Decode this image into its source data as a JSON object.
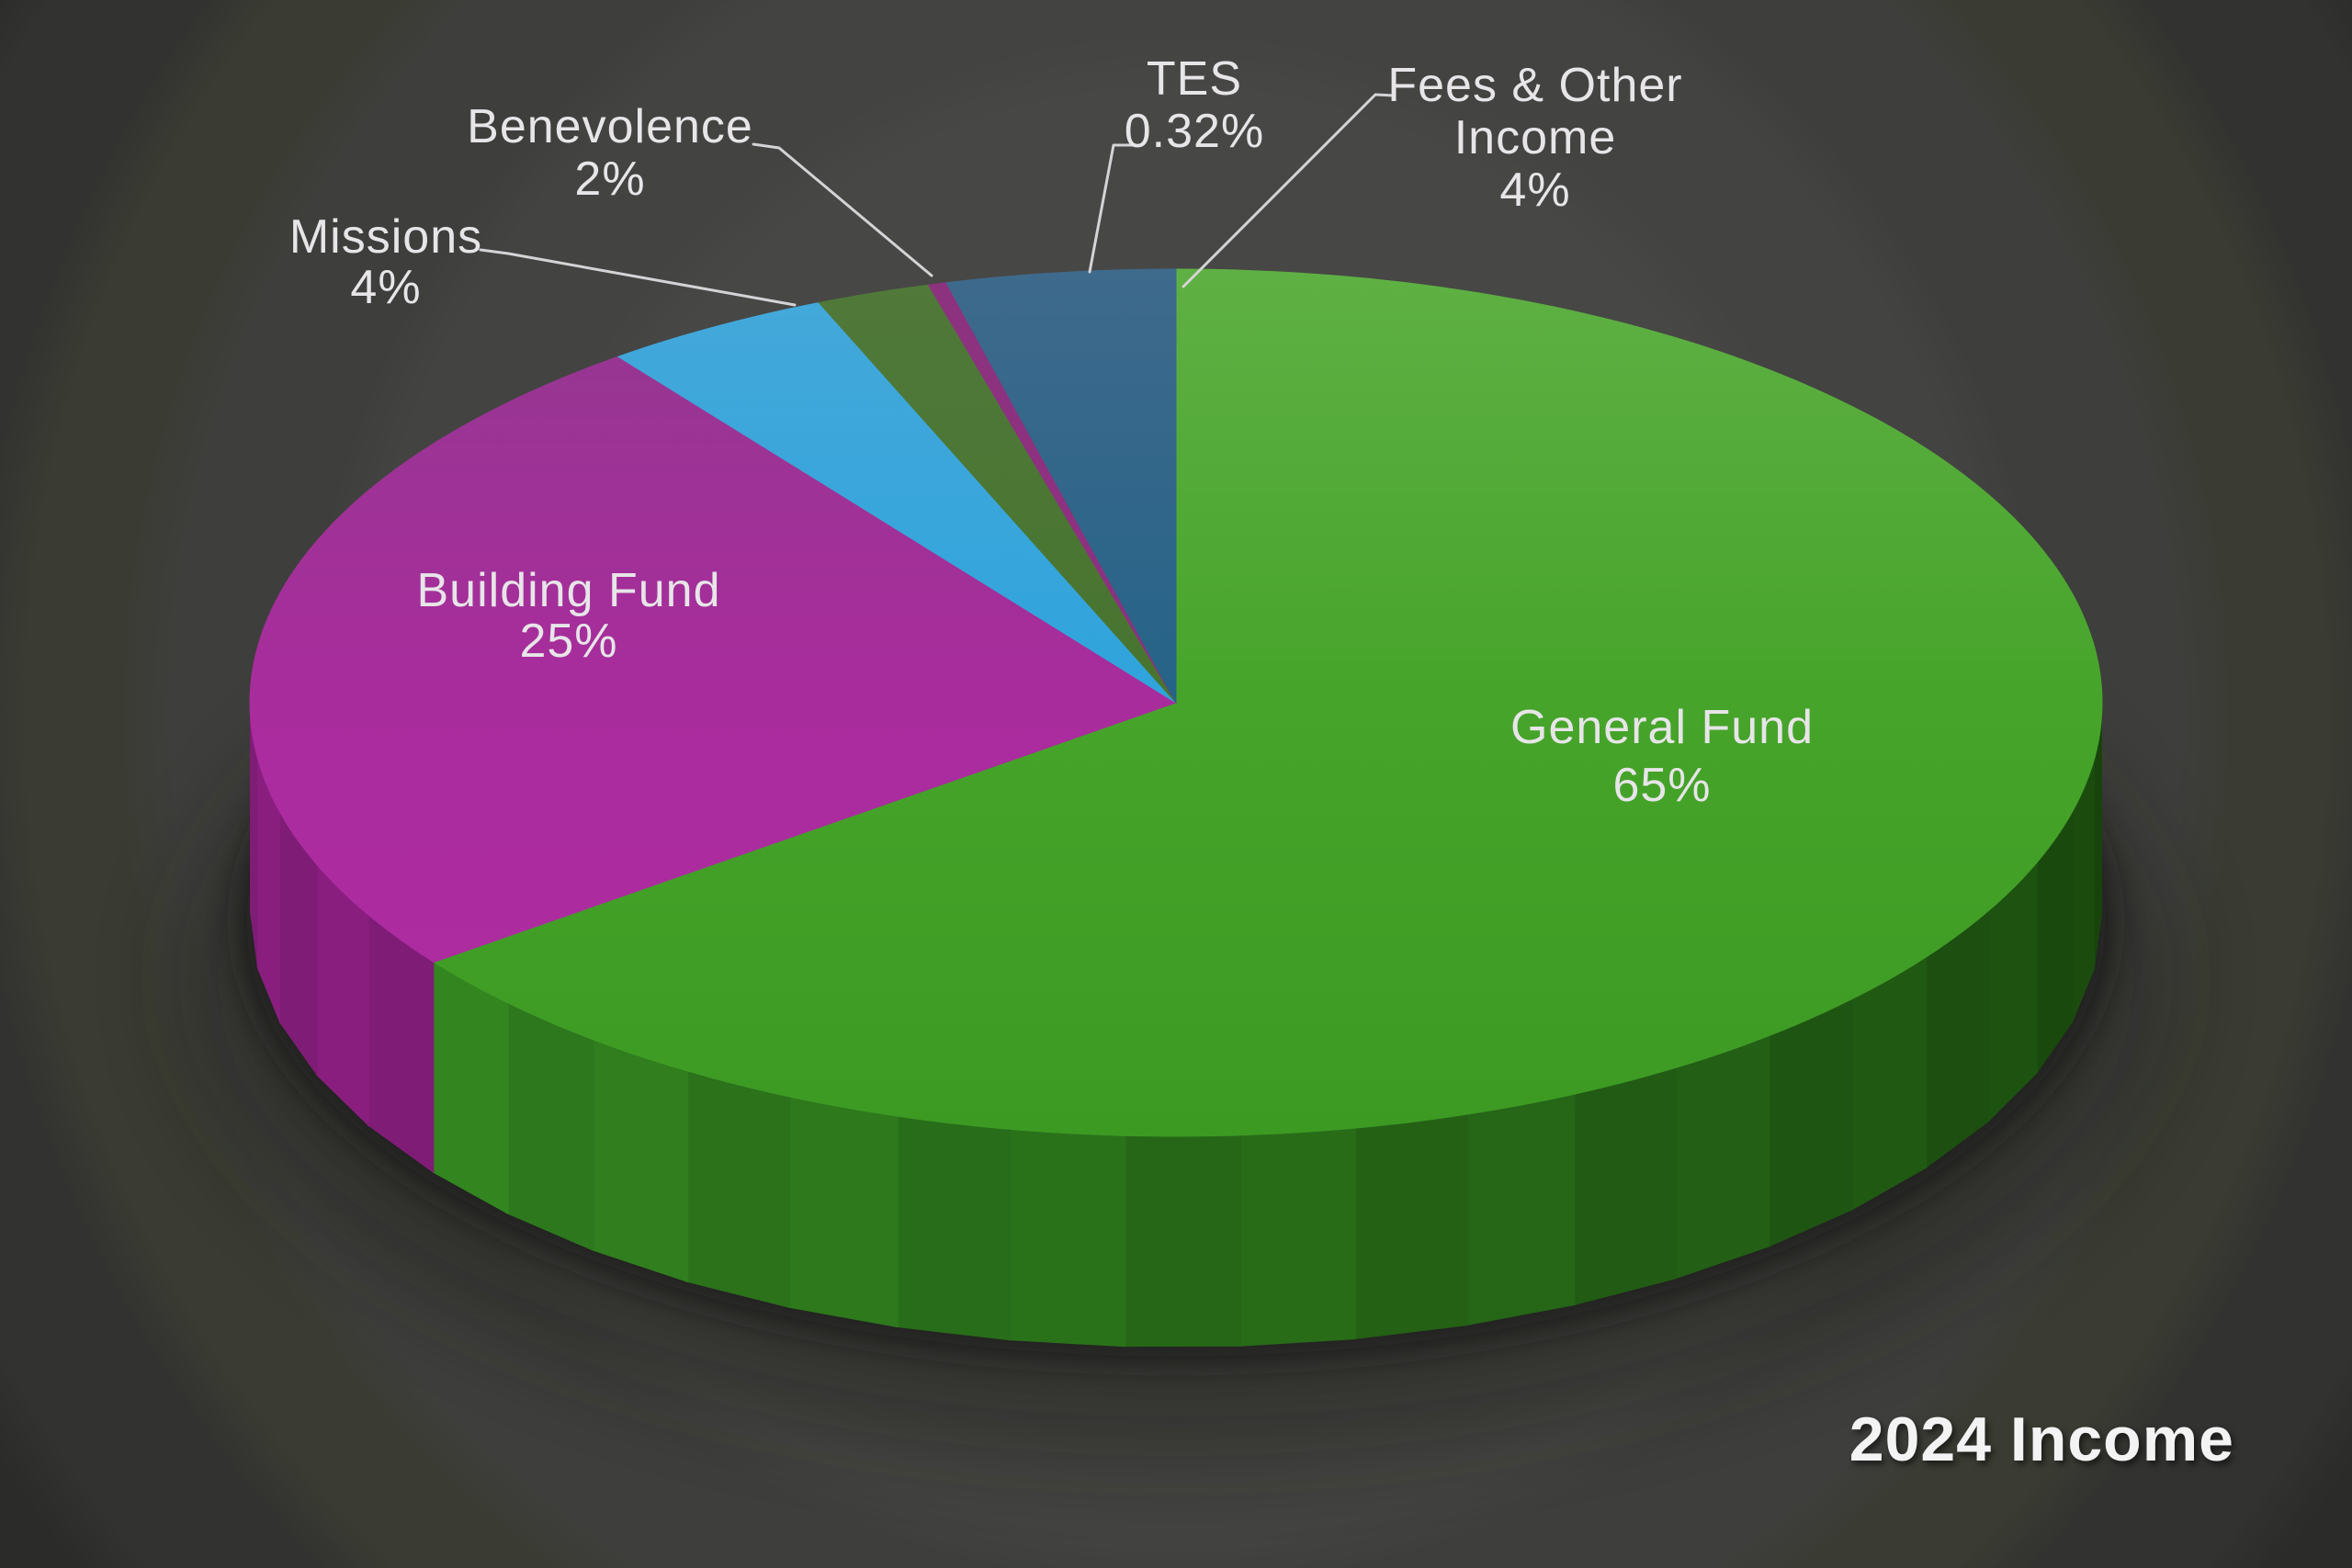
{
  "title": "2024 Income",
  "chart_data": {
    "type": "pie",
    "style": "3d",
    "unit": "%",
    "start_angle_deg": 0,
    "direction": "clockwise",
    "total_shown": 100.32,
    "legend": "none",
    "slices": [
      {
        "label": "General Fund",
        "value": 65,
        "pct_label": "65%",
        "label_lines": [
          "General Fund",
          "65%"
        ],
        "placement": "inside",
        "color_top_light": "#5FB044",
        "color_top": "#46A42A",
        "color_top_dark": "#3C9A23",
        "color_side_light": "#2F7D1E",
        "color_side_dark": "#17420C"
      },
      {
        "label": "Building Fund",
        "value": 25,
        "pct_label": "25%",
        "label_lines": [
          "Building Fund",
          "25%"
        ],
        "placement": "inside",
        "color_top_light": "#93388F",
        "color_top": "#A92C9D",
        "color_top_dark": "#B02BA3",
        "color_side_light": "#7F1C76",
        "color_side_dark": "#76166C"
      },
      {
        "label": "Missions",
        "value": 4,
        "pct_label": "4%",
        "label_lines": [
          "Missions",
          "4%"
        ],
        "placement": "outside",
        "color_top_light": "#45A8DA",
        "color_top": "#2FA4DC",
        "color_top_dark": "#17A0DE",
        "color_side_light": "#1C7FB4",
        "color_side_dark": "#1C7FB4"
      },
      {
        "label": "Benevolence",
        "value": 2,
        "pct_label": "2%",
        "label_lines": [
          "Benevolence",
          "2%"
        ],
        "placement": "outside",
        "color_top_light": "#50793A",
        "color_top": "#47742F",
        "color_top_dark": "#3F7028",
        "color_side_light": "#2F5520",
        "color_side_dark": "#2F5520"
      },
      {
        "label": "TES",
        "value": 0.32,
        "pct_label": "0.32%",
        "label_lines": [
          "TES",
          "0.32%"
        ],
        "placement": "outside",
        "color_top_light": "#8C327F",
        "color_top": "#8E3080",
        "color_top_dark": "#903080",
        "color_side_light": "#6B2360",
        "color_side_dark": "#6B2360"
      },
      {
        "label": "Fees & Other Income",
        "value": 4,
        "pct_label": "4%",
        "label_lines": [
          "Fees & Other",
          "Income",
          "4%"
        ],
        "placement": "outside",
        "color_top_light": "#3E6A8C",
        "color_top": "#256388",
        "color_top_dark": "#0C5880",
        "color_side_light": "#0A4563",
        "color_side_dark": "#0A4563"
      }
    ]
  },
  "colors": {
    "label_text": "#E7E5E8",
    "leader_line": "#D5D3D6",
    "background_base": "#4B4B49",
    "background_edge": "#222421",
    "shadow": "#141414"
  }
}
